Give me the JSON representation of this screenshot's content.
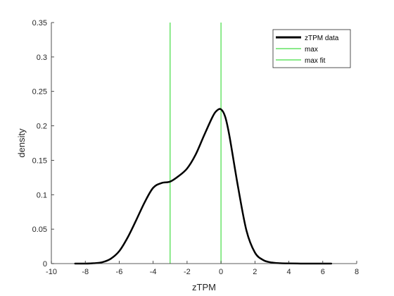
{
  "chart_data": {
    "type": "line",
    "xlabel": "zTPM",
    "ylabel": "density",
    "xlim": [
      -10,
      8
    ],
    "ylim": [
      0,
      0.35
    ],
    "x_ticks": [
      -10,
      -8,
      -6,
      -4,
      -2,
      0,
      2,
      4,
      6,
      8
    ],
    "y_ticks": [
      0,
      0.05,
      0.1,
      0.15,
      0.2,
      0.25,
      0.3,
      0.35
    ],
    "x_tick_labels": [
      "-10",
      "-8",
      "-6",
      "-4",
      "-2",
      "0",
      "2",
      "4",
      "6",
      "8"
    ],
    "y_tick_labels": [
      "0",
      "0.05",
      "0.1",
      "0.15",
      "0.2",
      "0.25",
      "0.3",
      "0.35"
    ],
    "grid": false,
    "legend_position": "top-right",
    "series": [
      {
        "name": "zTPM data",
        "color": "#000000",
        "x": [
          -8.6,
          -8.0,
          -7.5,
          -7.0,
          -6.5,
          -6.0,
          -5.5,
          -5.0,
          -4.5,
          -4.0,
          -3.5,
          -3.0,
          -2.5,
          -2.0,
          -1.5,
          -1.0,
          -0.5,
          -0.25,
          0.0,
          0.25,
          0.5,
          1.0,
          1.5,
          2.0,
          2.5,
          3.0,
          3.5,
          4.0,
          4.5,
          5.0,
          5.5,
          6.0,
          6.5
        ],
        "y": [
          0.0,
          0.0,
          0.0005,
          0.002,
          0.007,
          0.018,
          0.038,
          0.063,
          0.089,
          0.11,
          0.117,
          0.119,
          0.127,
          0.138,
          0.158,
          0.186,
          0.213,
          0.222,
          0.224,
          0.213,
          0.185,
          0.112,
          0.048,
          0.016,
          0.005,
          0.0015,
          0.0005,
          0.0002,
          0.0001,
          0.0,
          0.0,
          0.0,
          0.0
        ]
      },
      {
        "name": "max",
        "color": "#44dd44",
        "vline_x": 0.0
      },
      {
        "name": "max fit",
        "color": "#44dd44",
        "vline_x": -3.0
      }
    ]
  }
}
